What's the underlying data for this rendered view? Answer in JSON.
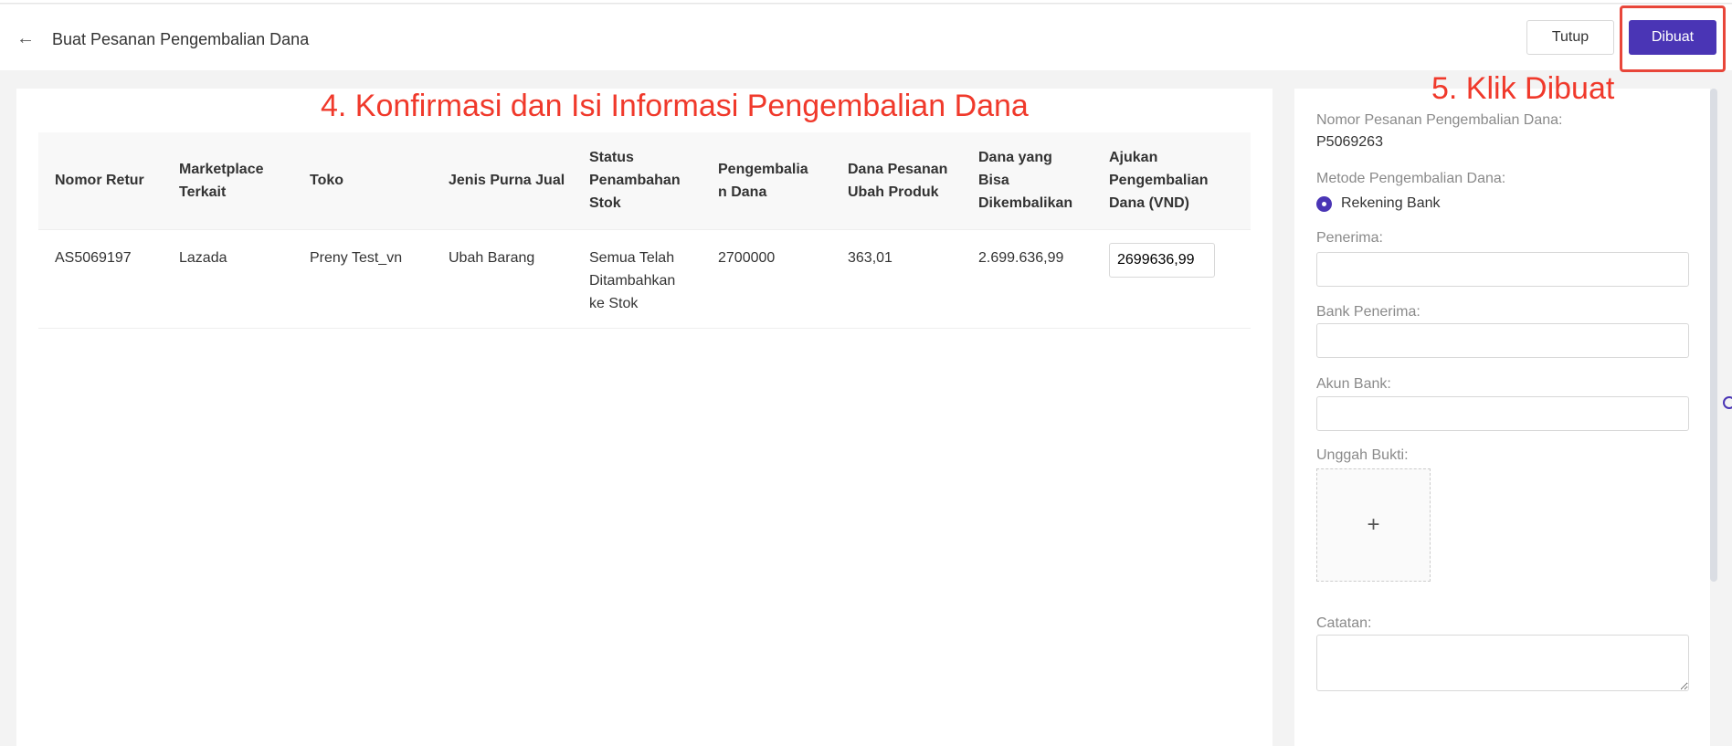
{
  "header": {
    "title": "Buat Pesanan Pengembalian Dana",
    "close_label": "Tutup",
    "create_label": "Dibuat"
  },
  "annotations": {
    "step4": "4. Konfirmasi dan Isi Informasi Pengembalian Dana",
    "step5": "5. Klik Dibuat",
    "accent": "#f0392b"
  },
  "table": {
    "headers": [
      "Nomor Retur",
      "Marketplace Terkait",
      "Toko",
      "Jenis Purna Jual",
      "Status Penambahan Stok",
      "Pengembalia n Dana",
      "Dana Pesanan Ubah Produk",
      "Dana yang Bisa Dikembalikan",
      "Ajukan Pengembalian Dana (VND)"
    ],
    "rows": [
      [
        "AS5069197",
        "Lazada",
        "Preny Test_vn",
        "Ubah Barang",
        "Semua Telah Ditambahkan ke Stok",
        "2700000",
        "363,01",
        "2.699.636,99",
        "2699636,99"
      ]
    ]
  },
  "form": {
    "order_no_label": "Nomor Pesanan Pengembalian Dana:",
    "order_no": "P5069263",
    "method_label": "Metode Pengembalian Dana:",
    "method_option": "Rekening Bank",
    "recipient_label": "Penerima:",
    "bank_label": "Bank Penerima:",
    "account_label": "Akun Bank:",
    "upload_label": "Unggah Bukti:",
    "upload_icon": "+",
    "notes_label": "Catatan:"
  },
  "colors": {
    "primary": "#4a35b5"
  }
}
